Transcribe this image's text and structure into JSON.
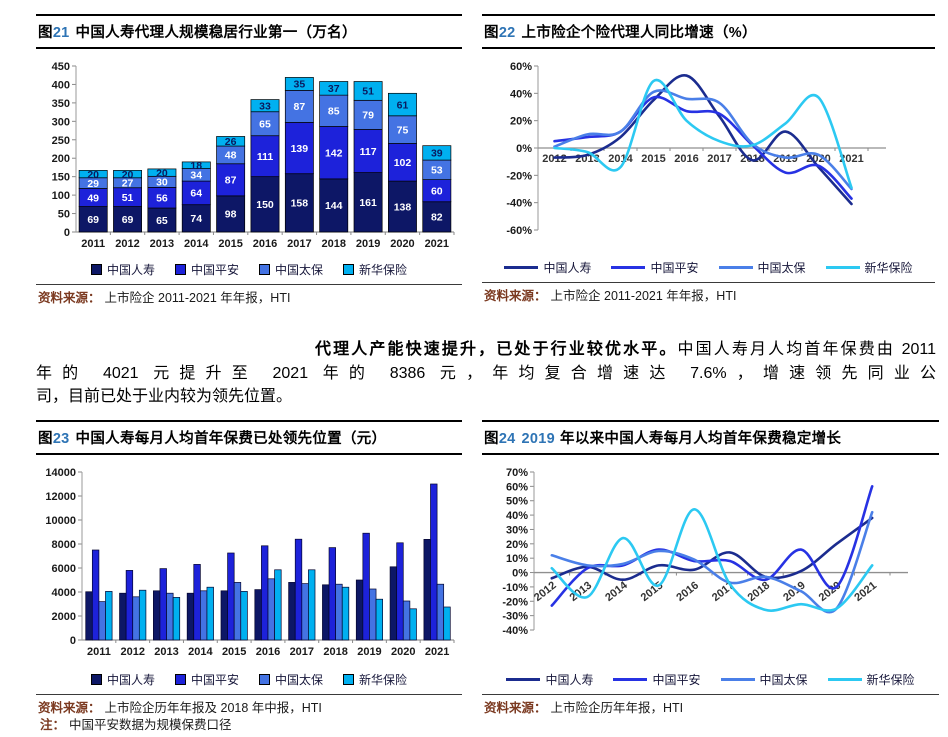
{
  "paragraph": {
    "line1_bold": "代理人产能快速提升，已处于行业较优水平。",
    "line1_rest": "中国人寿月人均首年保费由 2011",
    "line2": "年的 4021 元提升至 2021 年的 8386 元，年均复合增速达 7.6%，增速领先同业公",
    "line3": "司，目前已处于业内较为领先位置。"
  },
  "colors": {
    "fig_number_blue": "#2E74B5",
    "source_label_maroon": "#7B3A21",
    "bar_navy": "#0D1766",
    "bar_blue": "#1D22DA",
    "bar_midblue": "#4473E3",
    "bar_cyan": "#00B0F0"
  },
  "figures": [
    {
      "id": "fig21",
      "fig_char": "图",
      "fig_num": "21",
      "title_num": "",
      "title": "中国人寿代理人规模稳居行业第一（万名）",
      "source_label": "资料来源：",
      "source": "上市险企 2011-2021 年年报，HTI",
      "note_label": "",
      "note": "",
      "chart_data": {
        "type": "bar",
        "stacked": true,
        "grid": false,
        "legend_position": "bottom",
        "value_labels": true,
        "categories": [
          "2011",
          "2012",
          "2013",
          "2014",
          "2015",
          "2016",
          "2017",
          "2018",
          "2019",
          "2020",
          "2021"
        ],
        "series": [
          {
            "name": "中国人寿",
            "color": "#0D1766",
            "label_color": "#ffffff",
            "values": [
              69,
              69,
              65,
              74,
              98,
              150,
              158,
              144,
              161,
              138,
              82
            ]
          },
          {
            "name": "中国平安",
            "color": "#1D22DA",
            "label_color": "#ffffff",
            "values": [
              49,
              51,
              56,
              64,
              87,
              111,
              139,
              142,
              117,
              102,
              60
            ]
          },
          {
            "name": "中国太保",
            "color": "#4473E3",
            "label_color": "#ffffff",
            "values": [
              29,
              27,
              30,
              34,
              48,
              65,
              87,
              85,
              79,
              75,
              53
            ]
          },
          {
            "name": "新华保险",
            "color": "#00B0F0",
            "label_color": "#0A1A5E",
            "values": [
              20,
              20,
              20,
              18,
              26,
              33,
              35,
              37,
              51,
              61,
              39
            ]
          }
        ],
        "ylim": [
          0,
          450
        ],
        "ytick": 50
      }
    },
    {
      "id": "fig22",
      "fig_char": "图",
      "fig_num": "22",
      "title_num": "",
      "title": "上市险企个险代理人同比增速（%）",
      "source_label": "资料来源：",
      "source": "上市险企 2011-2021 年年报，HTI",
      "note_label": "",
      "note": "",
      "chart_data": {
        "type": "line",
        "smooth": true,
        "grid": false,
        "legend_position": "bottom",
        "x": [
          "2012",
          "2013",
          "2014",
          "2015",
          "2016",
          "2017",
          "2018",
          "2019",
          "2020",
          "2021"
        ],
        "series": [
          {
            "name": "中国人寿",
            "color": "#1B2C8F",
            "values": [
              -7,
              -5,
              8,
              35,
              53,
              23,
              -9,
              12,
              -14,
              -41
            ]
          },
          {
            "name": "中国平安",
            "color": "#2732E3",
            "values": [
              5,
              8,
              12,
              37,
              27,
              25,
              2,
              -18,
              -13,
              -37
            ]
          },
          {
            "name": "中国太保",
            "color": "#4A7FE8",
            "values": [
              1,
              10,
              12,
              41,
              36,
              33,
              3,
              -7,
              -5,
              -30
            ]
          },
          {
            "name": "新华保险",
            "color": "#2CC9F2",
            "values": [
              0,
              -3,
              -14,
              49,
              20,
              5,
              2,
              18,
              37,
              -29
            ]
          }
        ],
        "ylim": [
          -60,
          60
        ],
        "ytick": 20,
        "y_suffix": "%",
        "x_labels_at_zero": true
      }
    },
    {
      "id": "fig23",
      "fig_char": "图",
      "fig_num": "23",
      "title_num": "",
      "title": "中国人寿每月人均首年保费已处领先位置（元）",
      "source_label": "资料来源：",
      "source": "上市险企历年年报及 2018 年中报，HTI",
      "note_label": "注：",
      "note": "中国平安数据为规模保费口径",
      "chart_data": {
        "type": "bar",
        "stacked": false,
        "grid": false,
        "legend_position": "bottom",
        "value_labels": false,
        "categories": [
          "2011",
          "2012",
          "2013",
          "2014",
          "2015",
          "2016",
          "2017",
          "2018",
          "2019",
          "2020",
          "2021"
        ],
        "series": [
          {
            "name": "中国人寿",
            "color": "#0D1766",
            "values": [
              4021,
              3900,
              4100,
              3900,
              4100,
              4200,
              4800,
              4600,
              5000,
              6100,
              8386
            ]
          },
          {
            "name": "中国平安",
            "color": "#1D22DA",
            "values": [
              7500,
              5800,
              5950,
              6300,
              7250,
              7850,
              8400,
              7700,
              8900,
              8100,
              13000
            ]
          },
          {
            "name": "中国太保",
            "color": "#4473E3",
            "values": [
              3200,
              3600,
              3900,
              4100,
              4800,
              5100,
              4700,
              4650,
              4250,
              3250,
              4650
            ]
          },
          {
            "name": "新华保险",
            "color": "#00B0F0",
            "values": [
              4050,
              4150,
              3550,
              4400,
              4050,
              5850,
              5850,
              4400,
              3400,
              2600,
              2750
            ]
          }
        ],
        "ylim": [
          0,
          14000
        ],
        "ytick": 2000
      }
    },
    {
      "id": "fig24",
      "fig_char": "图",
      "fig_num": "24",
      "title_num": "2019",
      "title": "年以来中国人寿每月人均首年保费稳定增长",
      "source_label": "资料来源：",
      "source": "上市险企历年年报，HTI",
      "note_label": "",
      "note": "",
      "chart_data": {
        "type": "line",
        "smooth": true,
        "grid": false,
        "legend_position": "bottom",
        "x": [
          "2012",
          "2013",
          "2014",
          "2015",
          "2016",
          "2017",
          "2018",
          "2019",
          "2020",
          "2021"
        ],
        "series": [
          {
            "name": "中国人寿",
            "color": "#1B2C8F",
            "values": [
              -4,
              4,
              -5,
              5,
              2,
              14,
              -3,
              1,
              20,
              38
            ]
          },
          {
            "name": "中国平安",
            "color": "#2732E3",
            "values": [
              -23,
              3,
              5,
              16,
              8,
              8,
              -5,
              16,
              -10,
              60
            ]
          },
          {
            "name": "中国太保",
            "color": "#4A7FE8",
            "values": [
              12,
              5,
              6,
              15,
              9,
              -7,
              -3,
              -13,
              -25,
              42
            ]
          },
          {
            "name": "新华保险",
            "color": "#2CC9F2",
            "values": [
              3,
              -17,
              24,
              -9,
              44,
              -8,
              -26,
              -22,
              -25,
              5
            ]
          }
        ],
        "ylim": [
          -40,
          70
        ],
        "ytick": 10,
        "y_suffix": "%",
        "x_labels_at_zero": true,
        "x_labels_rotated": true
      }
    }
  ]
}
